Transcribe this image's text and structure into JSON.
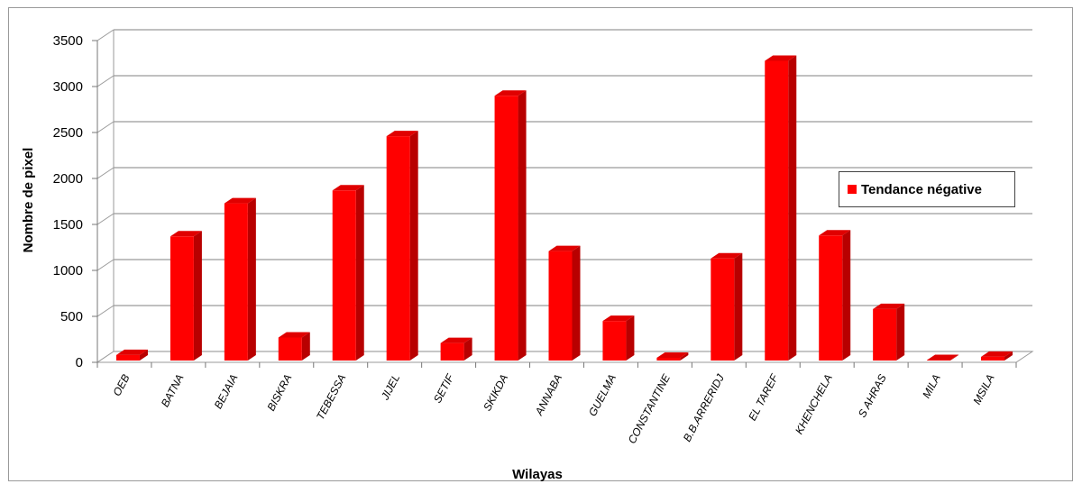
{
  "chart_data": {
    "type": "bar",
    "xlabel": "Wilayas",
    "ylabel": "Nombre de pixel",
    "ylim": [
      0,
      3500
    ],
    "yticks": [
      0,
      500,
      1000,
      1500,
      2000,
      2500,
      3000,
      3500
    ],
    "grid": true,
    "legend_position": "right",
    "categories": [
      "OEB",
      "BATNA",
      "BEJAIA",
      "BISKRA",
      "TEBESSA",
      "JIJEL",
      "SETIF",
      "SKIKDA",
      "ANNABA",
      "GUELMA",
      "CONSTANTINE",
      "B.B.ARRERIDJ",
      "EL TAREF",
      "KHENCHELA",
      "S AHRAS",
      "MILA",
      "MSILA"
    ],
    "series": [
      {
        "name": "Tendance négative",
        "color": "#ff0000",
        "values": [
          60,
          1350,
          1710,
          250,
          1850,
          2440,
          190,
          2880,
          1190,
          430,
          30,
          1110,
          3260,
          1360,
          560,
          5,
          40
        ]
      }
    ]
  }
}
